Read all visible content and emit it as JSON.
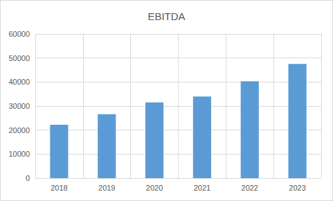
{
  "chart_data": {
    "type": "bar",
    "title": "EBITDA",
    "categories": [
      "2018",
      "2019",
      "2020",
      "2021",
      "2022",
      "2023"
    ],
    "values": [
      22200,
      26600,
      31500,
      34000,
      40300,
      47500
    ],
    "color": "#5b9bd5",
    "ylim": [
      0,
      60000
    ],
    "yticks": [
      0,
      10000,
      20000,
      30000,
      40000,
      50000,
      60000
    ],
    "grid": true
  }
}
